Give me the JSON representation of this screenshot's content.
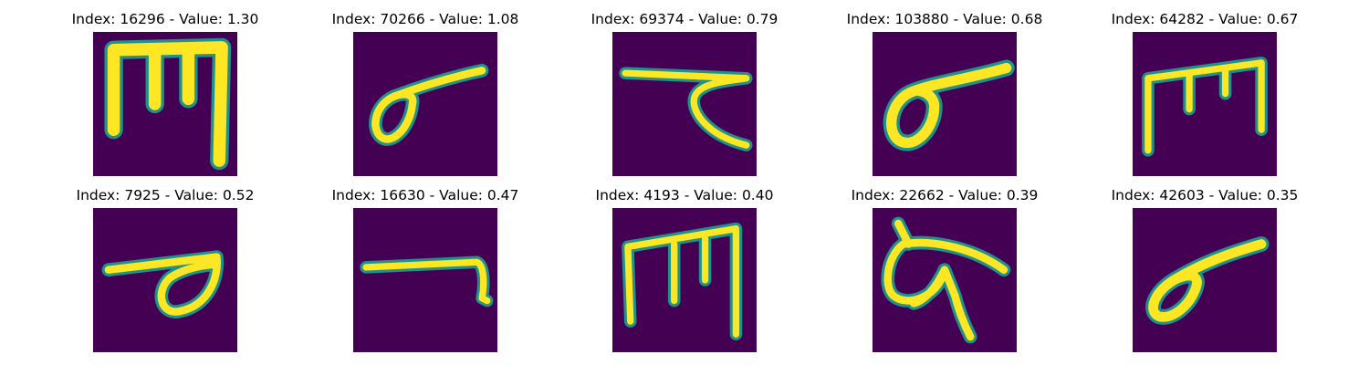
{
  "background_color": "#440154",
  "stroke_color": "#fde725",
  "stroke_edge_color": "#21918c",
  "panels": [
    {
      "title": "Index: 16296 - Value: 1.30",
      "glyph": "m-shape-thick"
    },
    {
      "title": "Index: 70266 - Value: 1.08",
      "glyph": "loop-with-line"
    },
    {
      "title": "Index: 69374 - Value: 0.79",
      "glyph": "bar-with-hook"
    },
    {
      "title": "Index: 103880 - Value: 0.68",
      "glyph": "loop-with-line"
    },
    {
      "title": "Index: 64282 - Value: 0.67",
      "glyph": "m-shape-thin"
    },
    {
      "title": "Index: 7925 - Value: 0.52",
      "glyph": "loop-with-bar"
    },
    {
      "title": "Index: 16630 - Value: 0.47",
      "glyph": "bar-with-tail"
    },
    {
      "title": "Index: 4193 - Value: 0.40",
      "glyph": "m-shape-thin"
    },
    {
      "title": "Index: 22662 - Value: 0.39",
      "glyph": "loop-with-cross"
    },
    {
      "title": "Index: 42603 - Value: 0.35",
      "glyph": "loop-with-line"
    }
  ]
}
